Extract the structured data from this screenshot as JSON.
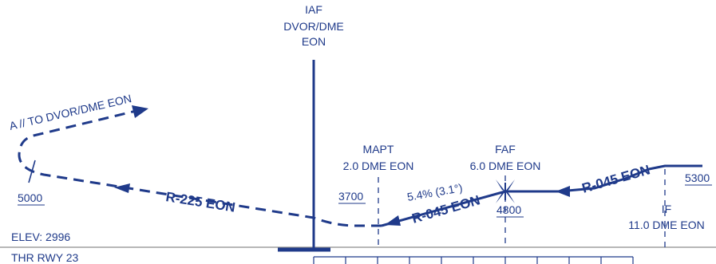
{
  "iaf": {
    "line1": "IAF",
    "line2": "DVOR/DME",
    "line3": "EON"
  },
  "mapt": {
    "line1": "MAPT",
    "line2": "2.0 DME EON"
  },
  "faf": {
    "line1": "FAF",
    "line2": "6.0 DME EON"
  },
  "if_fix": {
    "line1": "IF",
    "line2": "11.0 DME EON"
  },
  "altitudes": {
    "a5000": "5000",
    "a3700": "3700",
    "a4800": "4800",
    "a5300": "5300"
  },
  "courses": {
    "missed": "R-225 EON",
    "final": "R-045 EON",
    "intermediate": "R-045 EON"
  },
  "holding": "A // TO DVOR/DME EON",
  "glidepath": "5.4% (3.1°)",
  "elevation": "ELEV: 2996",
  "threshold": "THR RWY 23",
  "colors": {
    "ink": "#1f3a8a",
    "ground": "#8c8c8c"
  }
}
